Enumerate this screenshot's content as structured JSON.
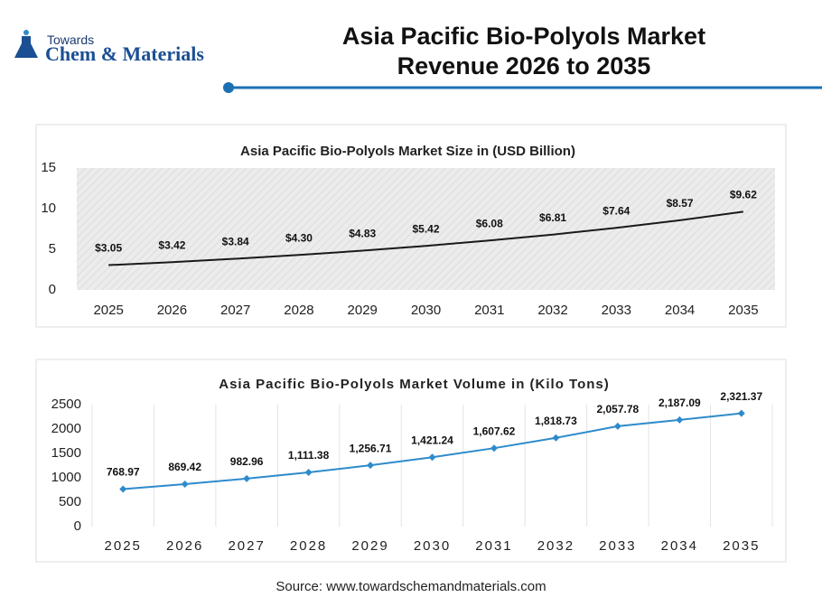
{
  "header": {
    "logo_top": "Towards",
    "logo_main": "Chem & Materials",
    "title": "Asia Pacific Bio-Polyols Market Revenue 2026 to 2035"
  },
  "chart_data": [
    {
      "type": "line",
      "title": "Asia Pacific Bio-Polyols Market Size in (USD Billion)",
      "categories": [
        "2025",
        "2026",
        "2027",
        "2028",
        "2029",
        "2030",
        "2031",
        "2032",
        "2033",
        "2034",
        "2035"
      ],
      "values": [
        3.05,
        3.42,
        3.84,
        4.3,
        4.83,
        5.42,
        6.08,
        6.81,
        7.64,
        8.57,
        9.62
      ],
      "value_labels": [
        "$3.05",
        "$3.42",
        "$3.84",
        "$4.30",
        "$4.83",
        "$5.42",
        "$6.08",
        "$6.81",
        "$7.64",
        "$8.57",
        "$9.62"
      ],
      "color": "#1a1a1a",
      "markers": false,
      "ylim": [
        0,
        15
      ],
      "yticks": [
        0,
        5,
        10,
        15
      ],
      "grid": false
    },
    {
      "type": "line",
      "title": "Asia Pacific Bio-Polyols Market Volume in (Kilo Tons)",
      "categories": [
        "2025",
        "2026",
        "2027",
        "2028",
        "2029",
        "2030",
        "2031",
        "2032",
        "2033",
        "2034",
        "2035"
      ],
      "values": [
        768.97,
        869.42,
        982.96,
        1111.38,
        1256.71,
        1421.24,
        1607.62,
        1818.73,
        2057.78,
        2187.09,
        2321.37
      ],
      "value_labels": [
        "768.97",
        "869.42",
        "982.96",
        "1,111.38",
        "1,256.71",
        "1,421.24",
        "1,607.62",
        "1,818.73",
        "2,057.78",
        "2,187.09",
        "2,321.37"
      ],
      "color": "#2e8bcb",
      "markers": true,
      "ylim": [
        0,
        2500
      ],
      "yticks": [
        0,
        500,
        1000,
        1500,
        2000,
        2500
      ],
      "grid": true
    }
  ],
  "source": "Source: www.towardschemandmaterials.com"
}
